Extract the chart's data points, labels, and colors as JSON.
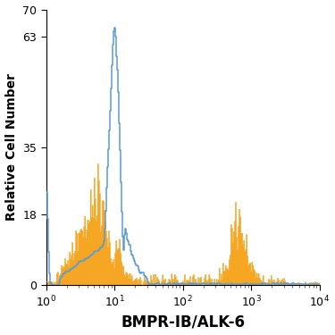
{
  "title": "",
  "xlabel": "BMPR-IB/ALK-6",
  "ylabel": "Relative Cell Number",
  "xlim_log": [
    1.0,
    10000.0
  ],
  "ylim": [
    0,
    70
  ],
  "yticks": [
    0,
    18,
    35,
    63,
    70
  ],
  "ytick_labels": [
    "0",
    "18",
    "35",
    "63",
    "70"
  ],
  "bg_color": "#ffffff",
  "blue_color": "#5b9bd5",
  "orange_color": "#f5a623",
  "xlabel_fontsize": 12,
  "ylabel_fontsize": 10,
  "tick_fontsize": 9
}
